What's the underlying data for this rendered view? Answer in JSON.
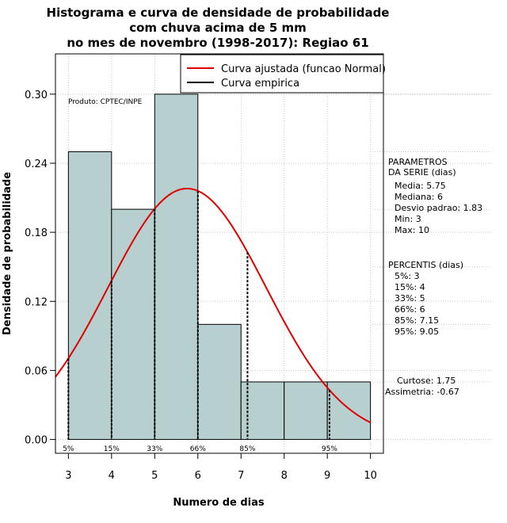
{
  "chart_data": {
    "type": "bar",
    "title_lines": [
      "Histograma e curva de densidade de probabilidade",
      "com chuva acima de 5 mm",
      "no mes de novembro (1998-2017): Regiao 61"
    ],
    "xlabel": "Numero de dias",
    "ylabel": "Densidade de probabilidade",
    "xlim": [
      2.7,
      10.3
    ],
    "ylim": [
      -0.012,
      0.335
    ],
    "x_ticks": [
      3,
      4,
      5,
      6,
      7,
      8,
      9,
      10
    ],
    "x_tick_labels": [
      "3",
      "4",
      "5",
      "6",
      "7",
      "8",
      "9",
      "10"
    ],
    "y_ticks": [
      0.0,
      0.06,
      0.12,
      0.18,
      0.24,
      0.3
    ],
    "y_tick_labels": [
      "0.00",
      "0.06",
      "0.12",
      "0.18",
      "0.24",
      "0.30"
    ],
    "bins": [
      [
        3,
        4
      ],
      [
        4,
        5
      ],
      [
        5,
        6
      ],
      [
        6,
        7
      ],
      [
        7,
        8
      ],
      [
        8,
        9
      ],
      [
        9,
        10
      ]
    ],
    "values": [
      0.25,
      0.2,
      0.3,
      0.1,
      0.05,
      0.05,
      0.05
    ],
    "bar_color": "#b8cfcf",
    "curve": {
      "name": "Curva ajustada (funcao Normal)",
      "mean": 5.75,
      "sd": 1.83,
      "color": "#e00000"
    },
    "empirical": {
      "name": "Curva empirica",
      "color": "#000000"
    },
    "percentile_lines": [
      {
        "label": "5%",
        "x": 3
      },
      {
        "label": "15%",
        "x": 4
      },
      {
        "label": "33%",
        "x": 5
      },
      {
        "label": "66%",
        "x": 6
      },
      {
        "label": "85%",
        "x": 7.15
      },
      {
        "label": "95%",
        "x": 9.05
      }
    ],
    "annotation": "Produto: CPTEC/INPE",
    "parameters": {
      "heading": [
        "PARAMETROS",
        "DA SERIE (dias)"
      ],
      "items": [
        "Media: 5.75",
        "Mediana: 6",
        "Desvio padrao: 1.83",
        "Min: 3",
        "Max: 10"
      ]
    },
    "percentiles": {
      "heading": "PERCENTIS (dias)",
      "items": [
        "5%: 3",
        "15%: 4",
        "33%: 5",
        "66%: 6",
        "85%: 7.15",
        "95%: 9.05"
      ]
    },
    "shape": {
      "items": [
        "Curtose: 1.75",
        "Assimetria: -0.67"
      ]
    }
  }
}
